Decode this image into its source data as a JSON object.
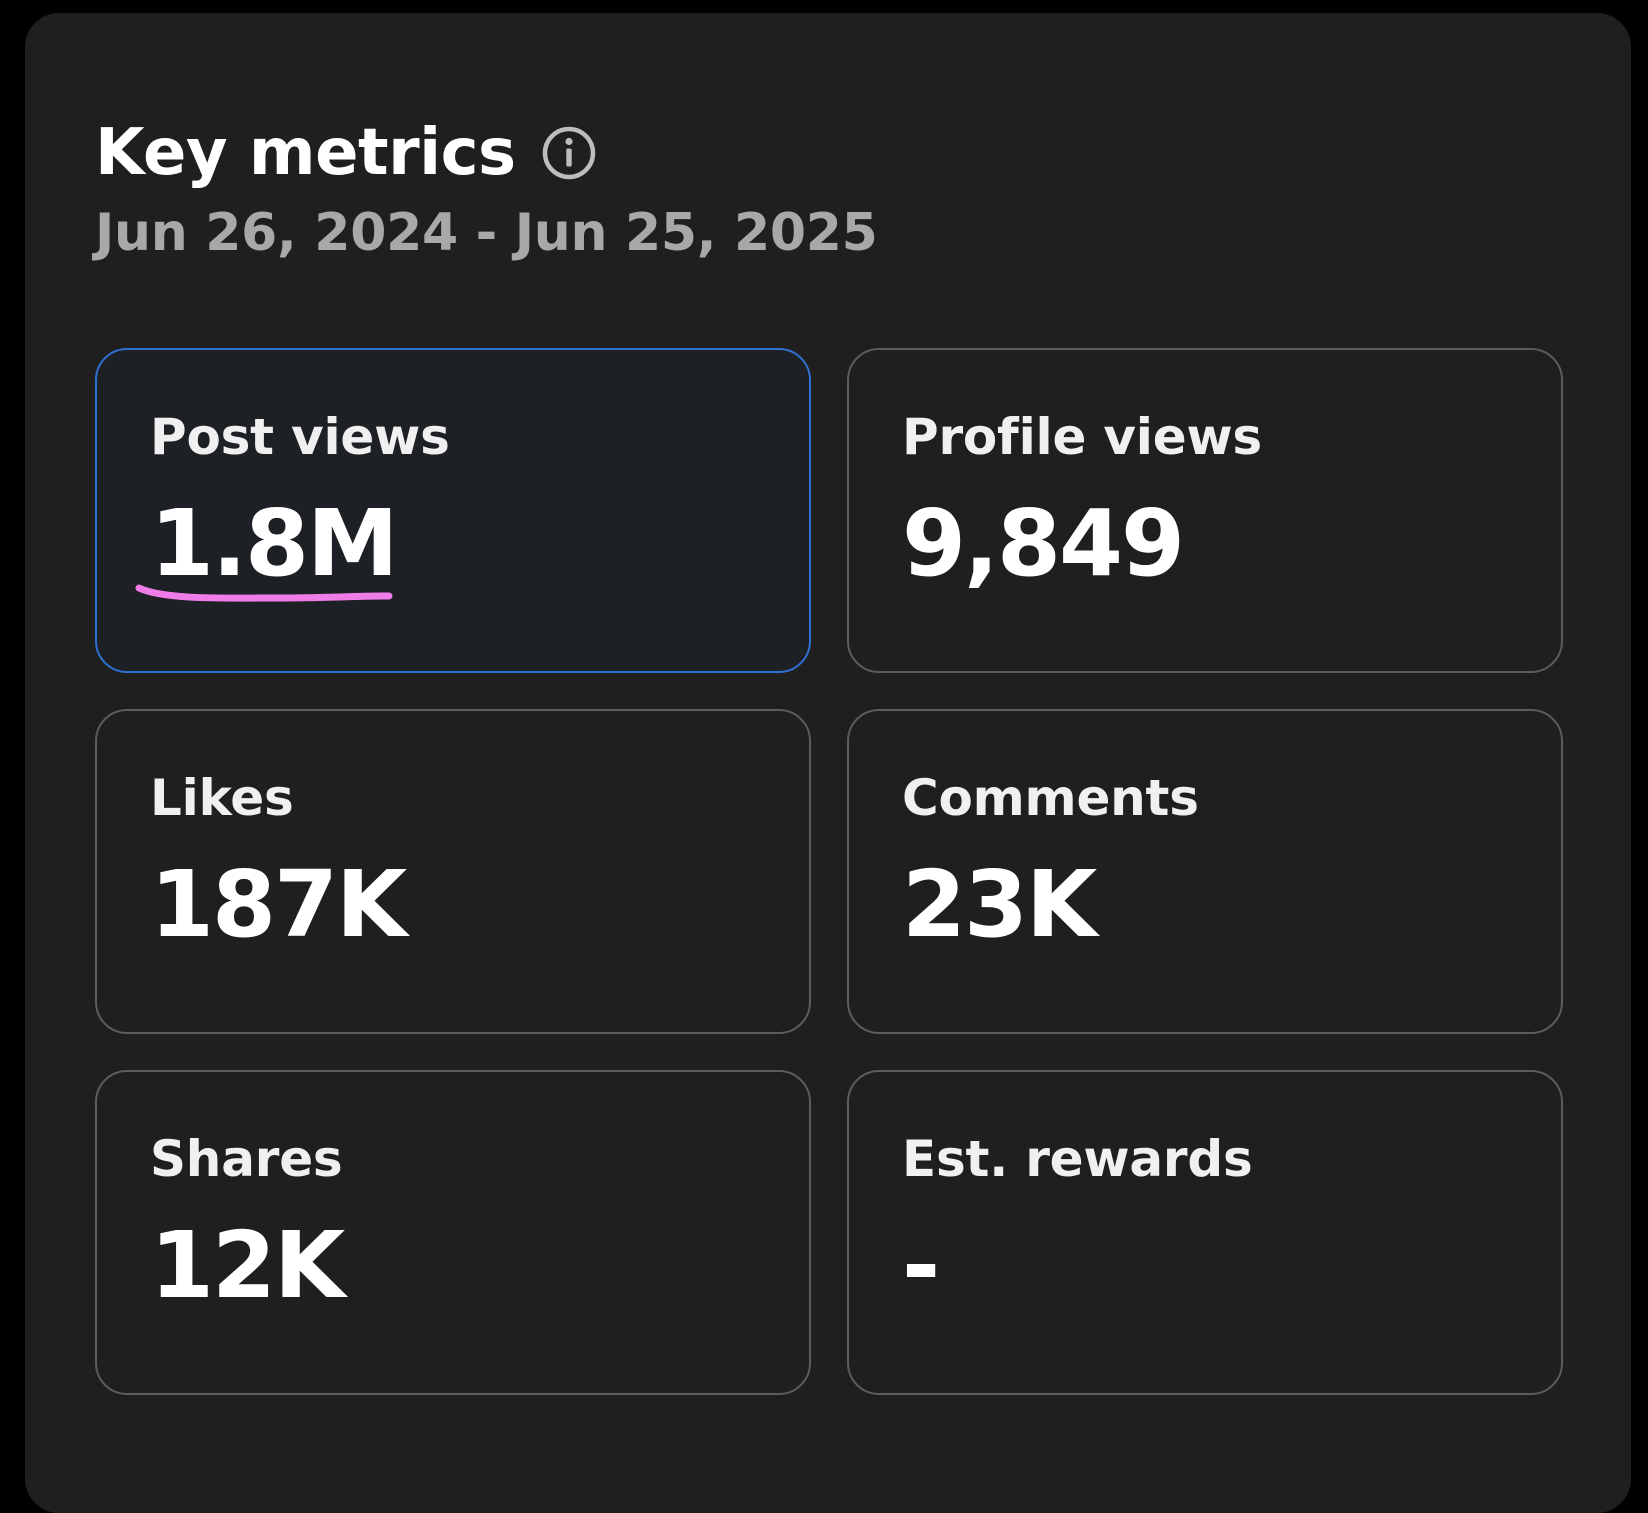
{
  "header": {
    "title": "Key metrics",
    "info_icon": "info-icon",
    "date_range": "Jun 26, 2024 - Jun 25, 2025"
  },
  "metrics": [
    {
      "label": "Post views",
      "value": "1.8M",
      "selected": true
    },
    {
      "label": "Profile views",
      "value": "9,849",
      "selected": false
    },
    {
      "label": "Likes",
      "value": "187K",
      "selected": false
    },
    {
      "label": "Comments",
      "value": "23K",
      "selected": false
    },
    {
      "label": "Shares",
      "value": "12K",
      "selected": false
    },
    {
      "label": "Est. rewards",
      "value": "-",
      "selected": false
    }
  ],
  "colors": {
    "page_background": "#000000",
    "panel_background": "#1f1f1f",
    "selected_border": "#2f6fd1",
    "card_border": "#5c5c5c",
    "annotation_underline": "#f07ce8",
    "muted_text": "#a8a8a8"
  }
}
